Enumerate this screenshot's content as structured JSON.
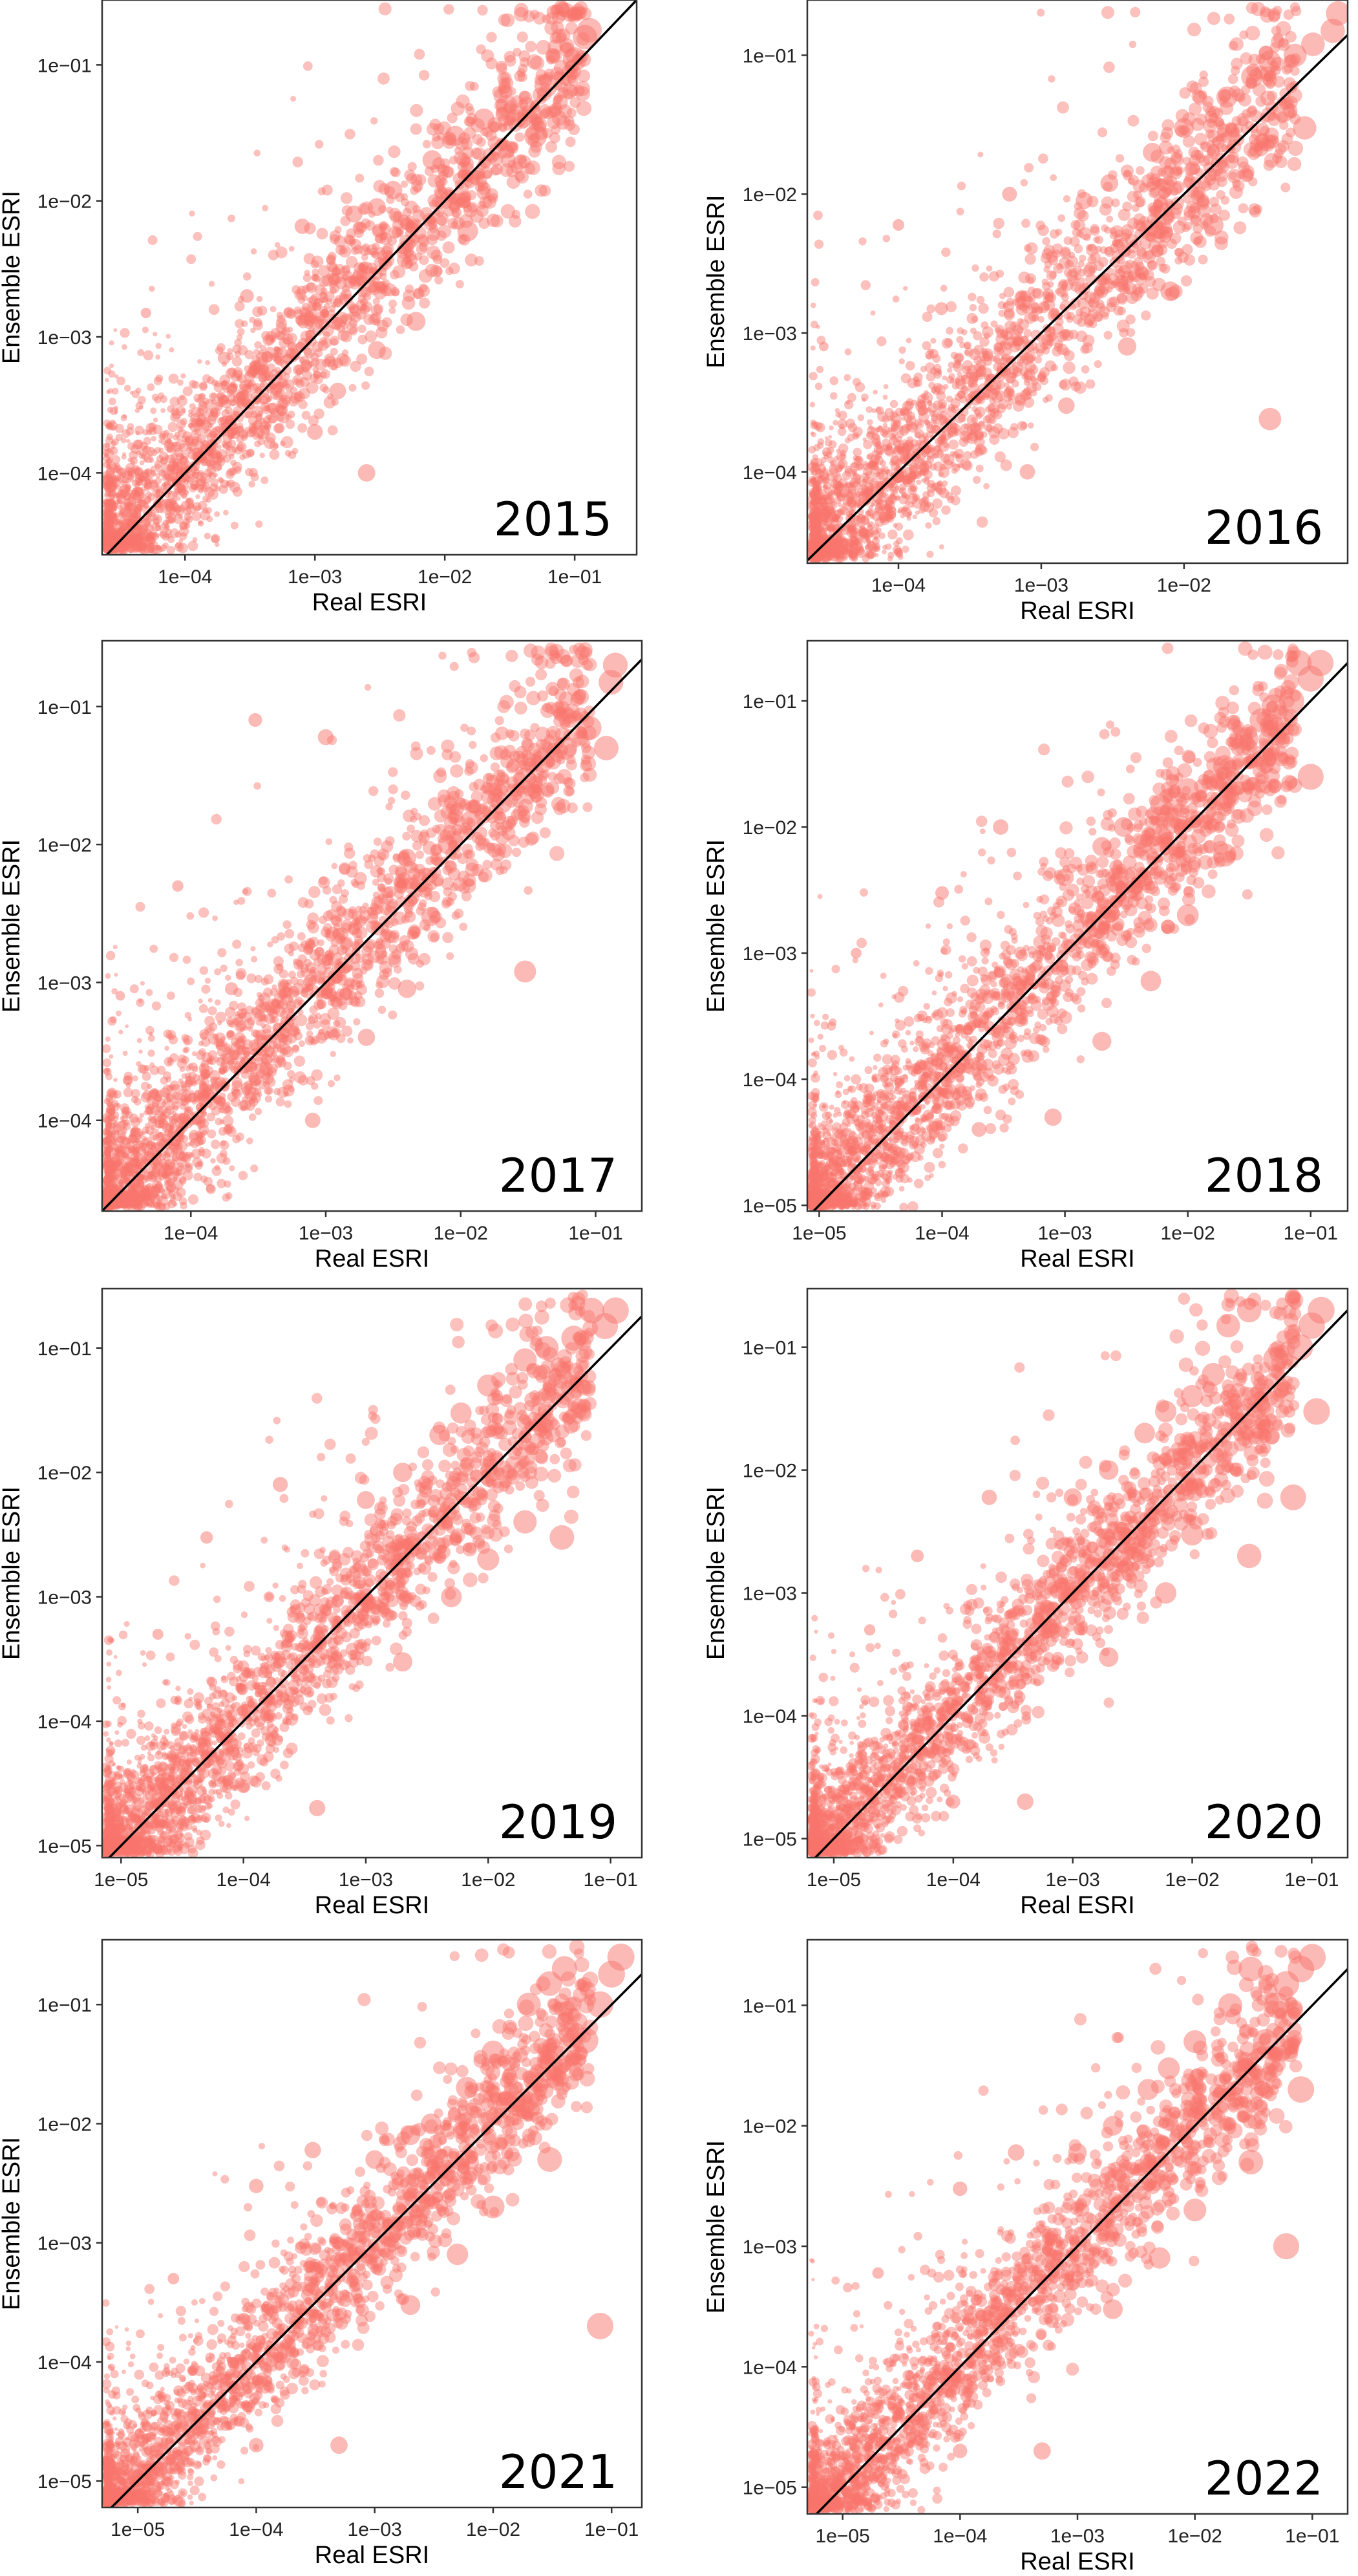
{
  "figure": {
    "marker_color": "#F8766D",
    "diagonal_color": "#000000",
    "frame_color": "#333333"
  },
  "chart_data": [
    {
      "type": "scatter",
      "panel": "2015",
      "xlabel": "Real ESRI",
      "ylabel": "Ensemble ESRI",
      "xscale": "log",
      "yscale": "log",
      "xlim": [
        2.3e-05,
        0.3
      ],
      "ylim": [
        2.5e-05,
        0.3
      ],
      "xticks": [
        0.0001,
        0.001,
        0.01,
        0.1
      ],
      "xtick_labels": [
        "1e−04",
        "1e−03",
        "1e−02",
        "1e−01"
      ],
      "yticks": [
        0.0001,
        0.001,
        0.01,
        0.1
      ],
      "ytick_labels": [
        "1e−04",
        "1e−03",
        "1e−02",
        "1e−01"
      ],
      "reference_line": "y = x",
      "grid": false,
      "legend": "none",
      "points": [
        [
          0.12,
          0.16
        ],
        [
          0.13,
          0.18
        ],
        [
          0.1,
          0.11
        ],
        [
          0.06,
          0.07
        ],
        [
          0.03,
          0.05
        ],
        [
          0.02,
          0.04
        ],
        [
          0.012,
          0.03
        ],
        [
          0.008,
          0.02
        ],
        [
          0.05,
          0.03
        ],
        [
          0.004,
          0.012
        ],
        [
          0.003,
          0.009
        ],
        [
          0.002,
          0.008
        ],
        [
          0.0008,
          0.0065
        ],
        [
          0.0003,
          0.002
        ],
        [
          5e-05,
          0.0015
        ],
        [
          2e-05,
          0.00015
        ],
        [
          0.0015,
          0.0004
        ],
        [
          0.003,
          0.0008
        ],
        [
          0.006,
          0.0013
        ],
        [
          0.0025,
          0.0001
        ],
        [
          0.001,
          0.0002
        ],
        [
          0.0004,
          0.0002
        ],
        [
          0.0002,
          0.0007
        ],
        [
          0.015,
          0.006
        ]
      ]
    },
    {
      "type": "scatter",
      "panel": "2016",
      "xlabel": "Real ESRI",
      "ylabel": "Ensemble ESRI",
      "xscale": "log",
      "yscale": "log",
      "xlim": [
        2.3e-05,
        0.14
      ],
      "ylim": [
        2.2e-05,
        0.25
      ],
      "xticks": [
        0.0001,
        0.001,
        0.01
      ],
      "xtick_labels": [
        "1e−04",
        "1e−03",
        "1e−02"
      ],
      "yticks": [
        0.0001,
        0.001,
        0.01,
        0.1
      ],
      "ytick_labels": [
        "1e−04",
        "1e−03",
        "1e−02",
        "1e−01"
      ],
      "reference_line": "y = x",
      "grid": false,
      "legend": "none",
      "points": [
        [
          0.12,
          0.2
        ],
        [
          0.11,
          0.15
        ],
        [
          0.08,
          0.12
        ],
        [
          0.06,
          0.1
        ],
        [
          0.04,
          0.09
        ],
        [
          0.03,
          0.07
        ],
        [
          0.02,
          0.05
        ],
        [
          0.01,
          0.03
        ],
        [
          0.006,
          0.02
        ],
        [
          0.05,
          0.04
        ],
        [
          0.07,
          0.03
        ],
        [
          0.04,
          0.00024
        ],
        [
          0.003,
          0.012
        ],
        [
          0.002,
          0.009
        ],
        [
          0.0006,
          0.01
        ],
        [
          0.0001,
          0.006
        ],
        [
          0.0002,
          0.0015
        ],
        [
          3e-05,
          0.0008
        ],
        [
          0.0015,
          0.0003
        ],
        [
          0.004,
          0.0008
        ],
        [
          0.008,
          0.002
        ],
        [
          0.0008,
          0.0001
        ],
        [
          0.0003,
          0.0002
        ],
        [
          0.016,
          0.006
        ]
      ]
    },
    {
      "type": "scatter",
      "panel": "2017",
      "xlabel": "Real ESRI",
      "ylabel": "Ensemble ESRI",
      "xscale": "log",
      "yscale": "log",
      "xlim": [
        2.2e-05,
        0.22
      ],
      "ylim": [
        2.2e-05,
        0.3
      ],
      "xticks": [
        0.0001,
        0.001,
        0.01,
        0.1
      ],
      "xtick_labels": [
        "1e−04",
        "1e−03",
        "1e−02",
        "1e−01"
      ],
      "yticks": [
        0.0001,
        0.001,
        0.01,
        0.1
      ],
      "ytick_labels": [
        "1e−04",
        "1e−03",
        "1e−02",
        "1e−01"
      ],
      "reference_line": "y = x",
      "grid": false,
      "legend": "none",
      "points": [
        [
          0.14,
          0.2
        ],
        [
          0.13,
          0.15
        ],
        [
          0.12,
          0.05
        ],
        [
          0.09,
          0.07
        ],
        [
          0.06,
          0.05
        ],
        [
          0.04,
          0.04
        ],
        [
          0.03,
          0.03
        ],
        [
          0.02,
          0.02
        ],
        [
          0.012,
          0.015
        ],
        [
          0.008,
          0.01
        ],
        [
          0.004,
          0.008
        ],
        [
          0.03,
          0.0012
        ],
        [
          0.001,
          0.06
        ],
        [
          0.0003,
          0.08
        ],
        [
          8e-05,
          0.005
        ],
        [
          3e-05,
          0.0008
        ],
        [
          0.002,
          0.0004
        ],
        [
          0.004,
          0.0009
        ],
        [
          0.0008,
          0.0001
        ],
        [
          0.0003,
          0.0002
        ],
        [
          0.0002,
          0.0009
        ],
        [
          0.006,
          0.003
        ]
      ]
    },
    {
      "type": "scatter",
      "panel": "2018",
      "xlabel": "Real ESRI",
      "ylabel": "Ensemble ESRI",
      "xscale": "log",
      "yscale": "log",
      "xlim": [
        8e-06,
        0.2
      ],
      "ylim": [
        9e-06,
        0.3
      ],
      "xticks": [
        1e-05,
        0.0001,
        0.001,
        0.01,
        0.1
      ],
      "xtick_labels": [
        "1e−05",
        "1e−04",
        "1e−03",
        "1e−02",
        "1e−01"
      ],
      "yticks": [
        1e-05,
        0.0001,
        0.001,
        0.01,
        0.1
      ],
      "ytick_labels": [
        "1e−05",
        "1e−04",
        "1e−03",
        "1e−02",
        "1e−01"
      ],
      "reference_line": "y = x",
      "grid": false,
      "legend": "none",
      "points": [
        [
          0.12,
          0.2
        ],
        [
          0.1,
          0.15
        ],
        [
          0.08,
          0.2
        ],
        [
          0.07,
          0.1
        ],
        [
          0.05,
          0.09
        ],
        [
          0.04,
          0.07
        ],
        [
          0.1,
          0.025
        ],
        [
          0.03,
          0.05
        ],
        [
          0.02,
          0.03
        ],
        [
          0.01,
          0.02
        ],
        [
          0.006,
          0.015
        ],
        [
          0.003,
          0.01
        ],
        [
          0.002,
          0.007
        ],
        [
          0.001,
          0.004
        ],
        [
          0.0003,
          0.01
        ],
        [
          0.0001,
          0.003
        ],
        [
          2e-05,
          0.001
        ],
        [
          0.002,
          0.0002
        ],
        [
          0.005,
          0.0006
        ],
        [
          0.01,
          0.002
        ],
        [
          0.0008,
          5e-05
        ],
        [
          0.0002,
          4e-05
        ],
        [
          0.02,
          0.006
        ]
      ]
    },
    {
      "type": "scatter",
      "panel": "2019",
      "xlabel": "Real ESRI",
      "ylabel": "Ensemble ESRI",
      "xscale": "log",
      "yscale": "log",
      "xlim": [
        7e-06,
        0.18
      ],
      "ylim": [
        8e-06,
        0.3
      ],
      "xticks": [
        1e-05,
        0.0001,
        0.001,
        0.01,
        0.1
      ],
      "xtick_labels": [
        "1e−05",
        "1e−04",
        "1e−03",
        "1e−02",
        "1e−01"
      ],
      "yticks": [
        1e-05,
        0.0001,
        0.001,
        0.01,
        0.1
      ],
      "ytick_labels": [
        "1e−05",
        "1e−04",
        "1e−03",
        "1e−02",
        "1e−01"
      ],
      "reference_line": "y = x",
      "grid": false,
      "legend": "none",
      "points": [
        [
          0.11,
          0.2
        ],
        [
          0.09,
          0.15
        ],
        [
          0.07,
          0.2
        ],
        [
          0.05,
          0.12
        ],
        [
          0.03,
          0.1
        ],
        [
          0.02,
          0.08
        ],
        [
          0.01,
          0.05
        ],
        [
          0.006,
          0.03
        ],
        [
          0.004,
          0.02
        ],
        [
          0.002,
          0.01
        ],
        [
          0.001,
          0.006
        ],
        [
          0.0002,
          0.008
        ],
        [
          5e-05,
          0.003
        ],
        [
          2e-05,
          0.0005
        ],
        [
          0.002,
          0.0003
        ],
        [
          0.005,
          0.001
        ],
        [
          0.01,
          0.002
        ],
        [
          0.02,
          0.004
        ],
        [
          0.0004,
          2e-05
        ],
        [
          0.0001,
          3e-05
        ],
        [
          0.04,
          0.003
        ]
      ]
    },
    {
      "type": "scatter",
      "panel": "2020",
      "xlabel": "Real ESRI",
      "ylabel": "Ensemble ESRI",
      "xscale": "log",
      "yscale": "log",
      "xlim": [
        6e-06,
        0.2
      ],
      "ylim": [
        7e-06,
        0.3
      ],
      "xticks": [
        1e-05,
        0.0001,
        0.001,
        0.01,
        0.1
      ],
      "xtick_labels": [
        "1e−05",
        "1e−04",
        "1e−03",
        "1e−02",
        "1e−01"
      ],
      "yticks": [
        1e-05,
        0.0001,
        0.001,
        0.01,
        0.1
      ],
      "ytick_labels": [
        "1e−05",
        "1e−04",
        "1e−03",
        "1e−02",
        "1e−01"
      ],
      "reference_line": "y = x",
      "grid": false,
      "legend": "none",
      "points": [
        [
          0.12,
          0.2
        ],
        [
          0.1,
          0.15
        ],
        [
          0.08,
          0.1
        ],
        [
          0.11,
          0.03
        ],
        [
          0.07,
          0.006
        ],
        [
          0.05,
          0.08
        ],
        [
          0.03,
          0.2
        ],
        [
          0.02,
          0.15
        ],
        [
          0.015,
          0.06
        ],
        [
          0.01,
          0.04
        ],
        [
          0.006,
          0.03
        ],
        [
          0.004,
          0.02
        ],
        [
          0.002,
          0.01
        ],
        [
          0.001,
          0.006
        ],
        [
          0.0002,
          0.006
        ],
        [
          5e-05,
          0.002
        ],
        [
          2e-05,
          0.0005
        ],
        [
          0.002,
          0.0003
        ],
        [
          0.006,
          0.001
        ],
        [
          0.03,
          0.002
        ],
        [
          0.0004,
          2e-05
        ],
        [
          0.0001,
          2e-05
        ],
        [
          0.01,
          0.003
        ]
      ]
    },
    {
      "type": "scatter",
      "panel": "2021",
      "xlabel": "Real ESRI",
      "ylabel": "Ensemble ESRI",
      "xscale": "log",
      "yscale": "log",
      "xlim": [
        5e-06,
        0.18
      ],
      "ylim": [
        6e-06,
        0.35
      ],
      "xticks": [
        1e-05,
        0.0001,
        0.001,
        0.01,
        0.1
      ],
      "xtick_labels": [
        "1e−05",
        "1e−04",
        "1e−03",
        "1e−02",
        "1e−01"
      ],
      "yticks": [
        1e-05,
        0.0001,
        0.001,
        0.01,
        0.1
      ],
      "ytick_labels": [
        "1e−05",
        "1e−04",
        "1e−03",
        "1e−02",
        "1e−01"
      ],
      "reference_line": "y = x",
      "grid": false,
      "legend": "none",
      "points": [
        [
          0.12,
          0.25
        ],
        [
          0.1,
          0.18
        ],
        [
          0.08,
          0.1
        ],
        [
          0.06,
          0.05
        ],
        [
          0.04,
          0.2
        ],
        [
          0.03,
          0.15
        ],
        [
          0.02,
          0.1
        ],
        [
          0.01,
          0.04
        ],
        [
          0.006,
          0.02
        ],
        [
          0.003,
          0.01
        ],
        [
          0.002,
          0.008
        ],
        [
          0.001,
          0.005
        ],
        [
          0.0003,
          0.006
        ],
        [
          0.0001,
          0.003
        ],
        [
          2e-05,
          0.0005
        ],
        [
          0.002,
          0.0003
        ],
        [
          0.005,
          0.0008
        ],
        [
          0.01,
          0.002
        ],
        [
          0.03,
          0.005
        ],
        [
          0.0005,
          2e-05
        ],
        [
          0.0001,
          2e-05
        ],
        [
          0.08,
          0.0002
        ]
      ]
    },
    {
      "type": "scatter",
      "panel": "2022",
      "xlabel": "Real ESRI",
      "ylabel": "Ensemble ESRI",
      "xscale": "log",
      "yscale": "log",
      "xlim": [
        5e-06,
        0.2
      ],
      "ylim": [
        6e-06,
        0.35
      ],
      "xticks": [
        1e-05,
        0.0001,
        0.001,
        0.01,
        0.1
      ],
      "xtick_labels": [
        "1e−05",
        "1e−04",
        "1e−03",
        "1e−02",
        "1e−01"
      ],
      "yticks": [
        1e-05,
        0.0001,
        0.001,
        0.01,
        0.1
      ],
      "ytick_labels": [
        "1e−05",
        "1e−04",
        "1e−03",
        "1e−02",
        "1e−01"
      ],
      "reference_line": "y = x",
      "grid": false,
      "legend": "none",
      "points": [
        [
          0.1,
          0.25
        ],
        [
          0.08,
          0.2
        ],
        [
          0.06,
          0.15
        ],
        [
          0.05,
          0.1
        ],
        [
          0.04,
          0.05
        ],
        [
          0.03,
          0.2
        ],
        [
          0.02,
          0.1
        ],
        [
          0.01,
          0.05
        ],
        [
          0.006,
          0.03
        ],
        [
          0.004,
          0.02
        ],
        [
          0.002,
          0.01
        ],
        [
          0.001,
          0.006
        ],
        [
          0.0003,
          0.006
        ],
        [
          0.0001,
          0.003
        ],
        [
          2e-05,
          0.0006
        ],
        [
          0.002,
          0.0003
        ],
        [
          0.005,
          0.0008
        ],
        [
          0.01,
          0.002
        ],
        [
          0.03,
          0.005
        ],
        [
          0.06,
          0.001
        ],
        [
          0.0005,
          2e-05
        ],
        [
          0.0001,
          2e-05
        ],
        [
          0.08,
          0.02
        ]
      ]
    }
  ]
}
